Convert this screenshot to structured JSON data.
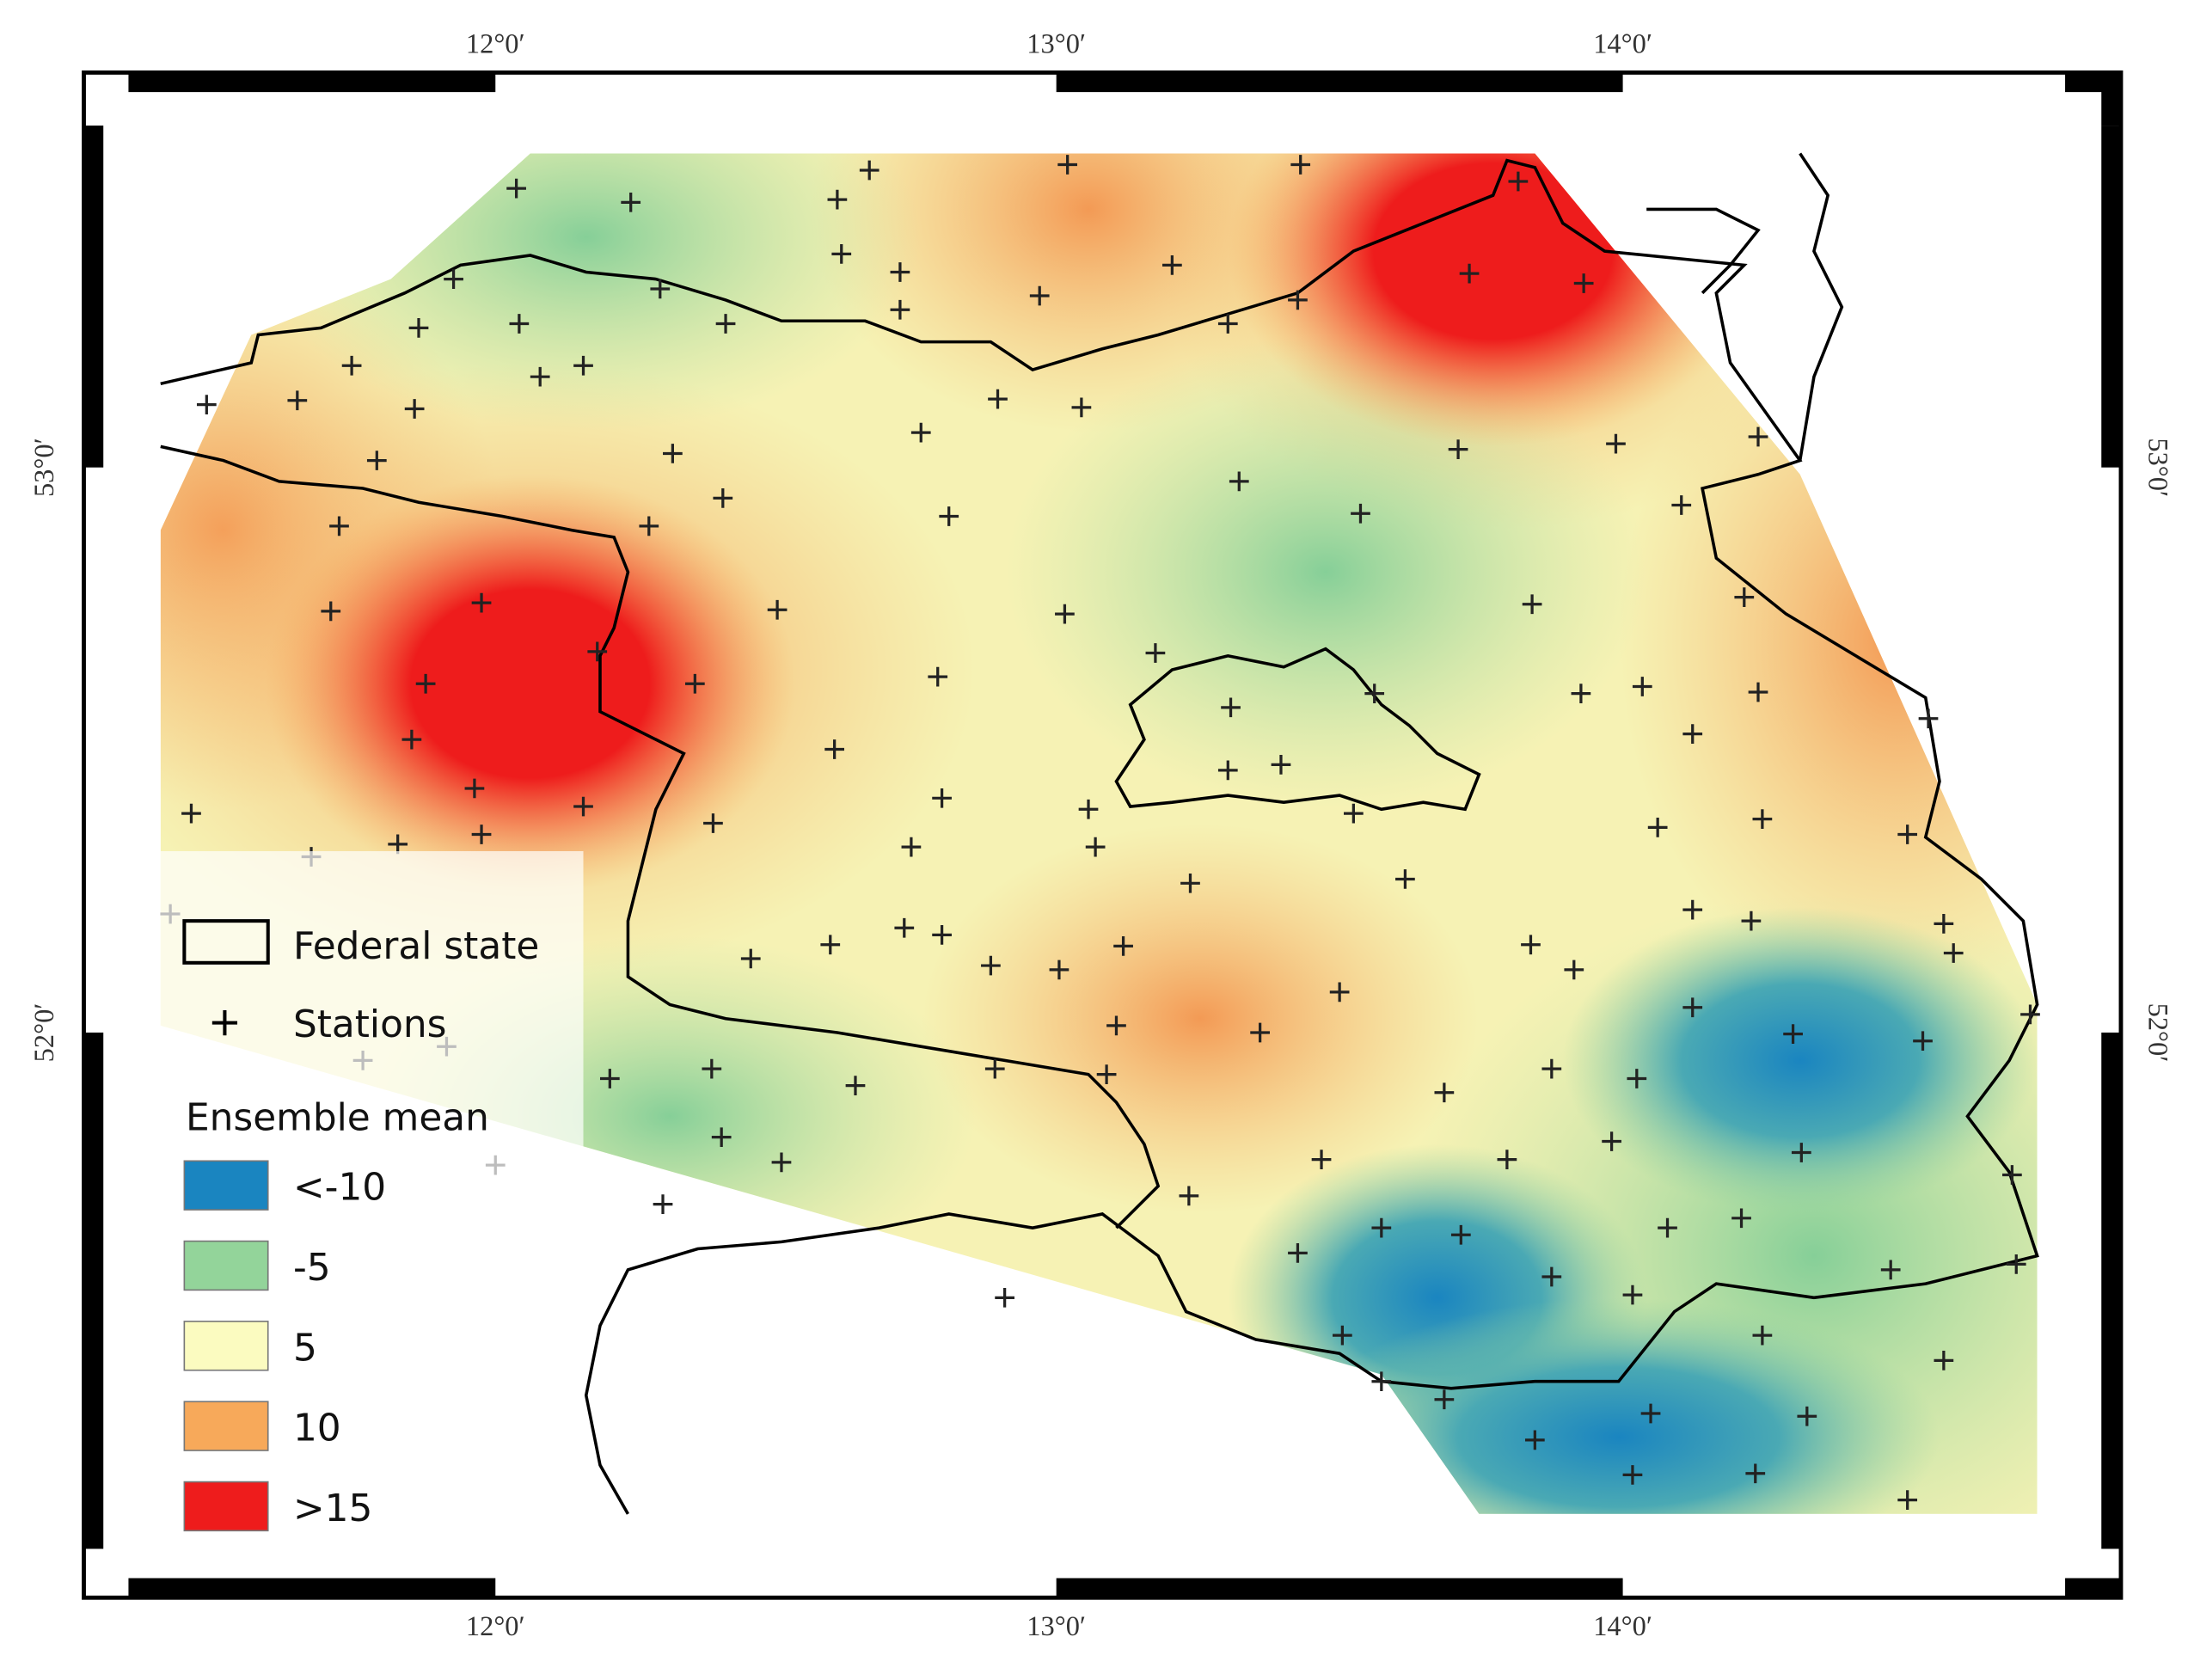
{
  "map": {
    "frame": {
      "top_labels": [
        "12°0′",
        "13°0′",
        "14°0′"
      ],
      "bottom_labels": [
        "12°0′",
        "13°0′",
        "14°0′"
      ],
      "left_labels": [
        "53°0′",
        "52°0′"
      ],
      "right_labels": [
        "53°0′",
        "52°0′"
      ]
    },
    "legend": {
      "boundary": "Federal state",
      "stations": "Stations",
      "title": "Ensemble mean",
      "classes": [
        {
          "label": "<-10",
          "color": "#1a85c0"
        },
        {
          "label": "-5",
          "color": "#93d49a"
        },
        {
          "label": "5",
          "color": "#fbfbc0"
        },
        {
          "label": "10",
          "color": "#f7a95a"
        },
        {
          "label": ">15",
          "color": "#ee1c1c"
        }
      ]
    }
  }
}
